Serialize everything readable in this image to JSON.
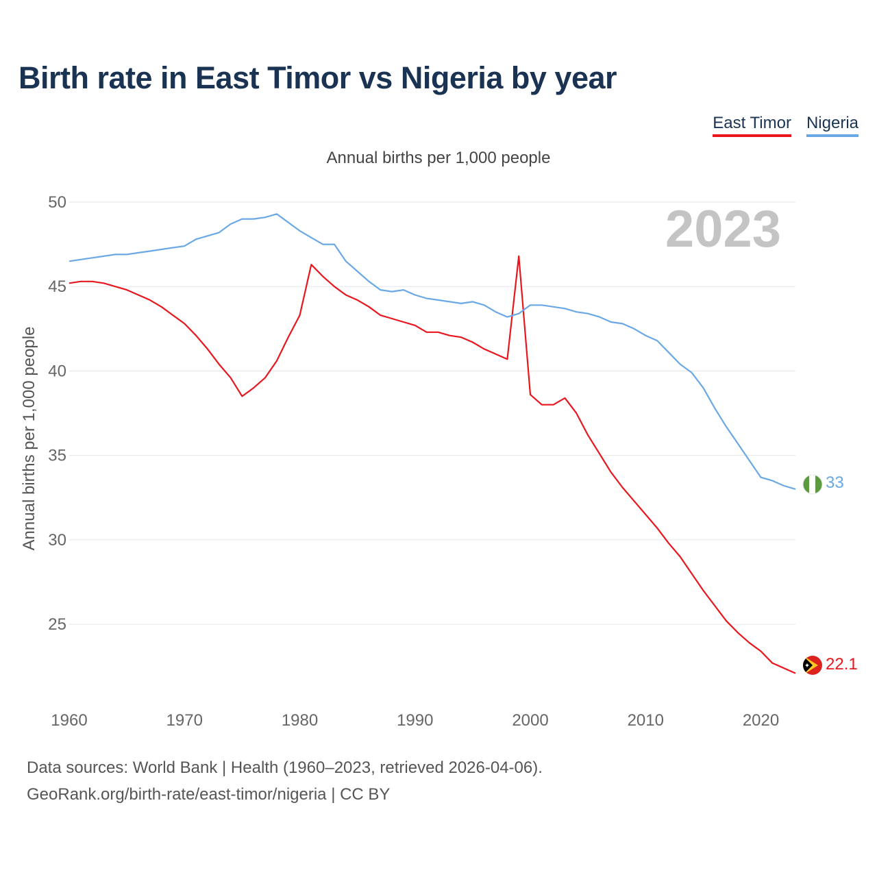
{
  "title": "Birth rate in East Timor vs Nigeria by year",
  "legend": [
    {
      "label": "East Timor",
      "color": "#e8161d"
    },
    {
      "label": "Nigeria",
      "color": "#69a8e4"
    }
  ],
  "subtitle": "Annual births per 1,000 people",
  "footer": {
    "sources": "Data sources: World Bank | Health (1960–2023, retrieved 2026-04-06).",
    "link": "GeoRank.org/birth-rate/east-timor/nigeria | CC BY"
  },
  "chart_data": {
    "type": "line",
    "title": "Birth rate in East Timor vs Nigeria by year",
    "ylabel": "Annual births per 1,000 people",
    "xlabel": "",
    "year_watermark": "2023",
    "xlim": [
      1960,
      2023
    ],
    "ylim": [
      20.5,
      50
    ],
    "xticks": [
      1960,
      1970,
      1980,
      1990,
      2000,
      2010,
      2020
    ],
    "yticks": [
      25,
      30,
      35,
      40,
      45,
      50
    ],
    "grid": true,
    "x": [
      1960,
      1961,
      1962,
      1963,
      1964,
      1965,
      1966,
      1967,
      1968,
      1969,
      1970,
      1971,
      1972,
      1973,
      1974,
      1975,
      1976,
      1977,
      1978,
      1979,
      1980,
      1981,
      1982,
      1983,
      1984,
      1985,
      1986,
      1987,
      1988,
      1989,
      1990,
      1991,
      1992,
      1993,
      1994,
      1995,
      1996,
      1997,
      1998,
      1999,
      2000,
      2001,
      2002,
      2003,
      2004,
      2005,
      2006,
      2007,
      2008,
      2009,
      2010,
      2011,
      2012,
      2013,
      2014,
      2015,
      2016,
      2017,
      2018,
      2019,
      2020,
      2021,
      2022,
      2023
    ],
    "series": [
      {
        "name": "East Timor",
        "color": "#e8161d",
        "end_label": "22.1",
        "values": [
          45.2,
          45.3,
          45.3,
          45.2,
          45.0,
          44.8,
          44.5,
          44.2,
          43.8,
          43.3,
          42.8,
          42.1,
          41.3,
          40.4,
          39.6,
          38.5,
          39.0,
          39.6,
          40.6,
          42.0,
          43.3,
          46.3,
          45.6,
          45.0,
          44.5,
          44.2,
          43.8,
          43.3,
          43.1,
          42.9,
          42.7,
          42.3,
          42.3,
          42.1,
          42.0,
          41.7,
          41.3,
          41.0,
          40.7,
          46.8,
          38.6,
          38.0,
          38.0,
          38.4,
          37.5,
          36.2,
          35.1,
          34.0,
          33.1,
          32.3,
          31.5,
          30.7,
          29.8,
          29.0,
          28.0,
          27.0,
          26.1,
          25.2,
          24.5,
          23.9,
          23.4,
          22.7,
          22.4,
          22.1
        ]
      },
      {
        "name": "Nigeria",
        "color": "#69a8e4",
        "end_label": "33",
        "values": [
          46.5,
          46.6,
          46.7,
          46.8,
          46.9,
          46.9,
          47.0,
          47.1,
          47.2,
          47.3,
          47.4,
          47.8,
          48.0,
          48.2,
          48.7,
          49.0,
          49.0,
          49.1,
          49.3,
          48.8,
          48.3,
          47.9,
          47.5,
          47.5,
          46.5,
          45.9,
          45.3,
          44.8,
          44.7,
          44.8,
          44.5,
          44.3,
          44.2,
          44.1,
          44.0,
          44.1,
          43.9,
          43.5,
          43.2,
          43.4,
          43.9,
          43.9,
          43.8,
          43.7,
          43.5,
          43.4,
          43.2,
          42.9,
          42.8,
          42.5,
          42.1,
          41.8,
          41.1,
          40.4,
          39.9,
          39.0,
          37.8,
          36.7,
          35.7,
          34.7,
          33.7,
          33.5,
          33.2,
          33.0
        ]
      }
    ]
  }
}
